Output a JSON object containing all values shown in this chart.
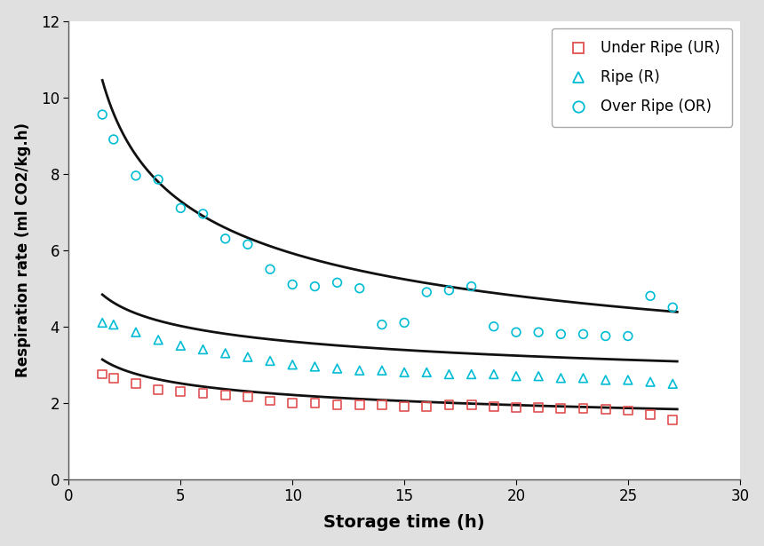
{
  "title": "",
  "xlabel": "Storage time (h)",
  "ylabel": "Respiration rate (ml CO2/kg.h)",
  "xlim": [
    0,
    30
  ],
  "ylim": [
    0,
    12
  ],
  "xticks": [
    0,
    5,
    10,
    15,
    20,
    25,
    30
  ],
  "yticks": [
    0,
    2,
    4,
    6,
    8,
    10,
    12
  ],
  "background_color": "#e0e0e0",
  "plot_bg_color": "#ffffff",
  "UR_x": [
    1.5,
    2,
    3,
    4,
    5,
    6,
    7,
    8,
    9,
    10,
    11,
    12,
    13,
    14,
    15,
    16,
    17,
    18,
    19,
    20,
    21,
    22,
    23,
    24,
    25,
    26,
    27
  ],
  "UR_y": [
    2.75,
    2.65,
    2.5,
    2.35,
    2.3,
    2.25,
    2.2,
    2.15,
    2.05,
    2.0,
    2.0,
    1.95,
    1.95,
    1.95,
    1.9,
    1.9,
    1.95,
    1.95,
    1.9,
    1.88,
    1.88,
    1.85,
    1.85,
    1.83,
    1.8,
    1.7,
    1.55
  ],
  "R_x": [
    1.5,
    2,
    3,
    4,
    5,
    6,
    7,
    8,
    9,
    10,
    11,
    12,
    13,
    14,
    15,
    16,
    17,
    18,
    19,
    20,
    21,
    22,
    23,
    24,
    25,
    26,
    27
  ],
  "R_y": [
    4.1,
    4.05,
    3.85,
    3.65,
    3.5,
    3.4,
    3.3,
    3.2,
    3.1,
    3.0,
    2.95,
    2.9,
    2.85,
    2.85,
    2.8,
    2.8,
    2.75,
    2.75,
    2.75,
    2.7,
    2.7,
    2.65,
    2.65,
    2.6,
    2.6,
    2.55,
    2.5
  ],
  "OR_x": [
    1.5,
    2,
    3,
    4,
    5,
    6,
    7,
    8,
    9,
    10,
    11,
    12,
    13,
    14,
    15,
    16,
    17,
    18,
    19,
    20,
    21,
    22,
    23,
    24,
    25,
    26,
    27
  ],
  "OR_y": [
    9.55,
    8.9,
    7.95,
    7.85,
    7.1,
    6.95,
    6.3,
    6.15,
    5.5,
    5.1,
    5.05,
    5.15,
    5.0,
    4.05,
    4.1,
    4.9,
    4.95,
    5.05,
    4.0,
    3.85,
    3.85,
    3.8,
    3.8,
    3.75,
    3.75,
    4.8,
    4.5
  ],
  "fit_x_start": 1.5,
  "fit_x_end": 27.2,
  "UR_fit_a": 3.38,
  "UR_fit_b": -0.185,
  "R_fit_a": 5.15,
  "R_fit_b": -0.155,
  "OR_fit_a": 11.8,
  "OR_fit_b": -0.3,
  "marker_color_UR": "#e05050",
  "marker_color_R": "#00bcd4",
  "marker_color_OR": "#00bcd4",
  "fit_color": "#111111",
  "marker_size": 7,
  "fit_linewidth": 2.0,
  "legend_labels": [
    "Under Ripe (UR)",
    "Ripe (R)",
    "Over Ripe (OR)"
  ]
}
